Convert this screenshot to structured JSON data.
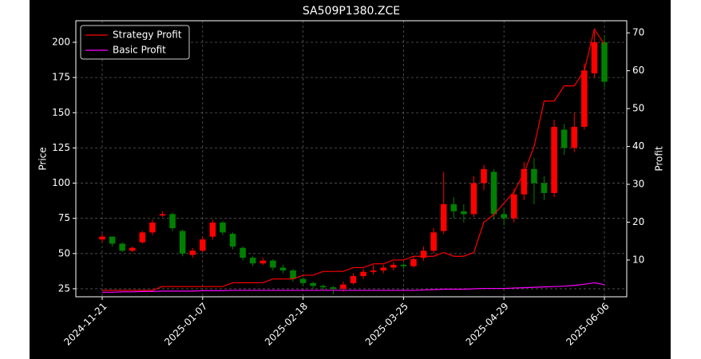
{
  "chart_data": {
    "type": "candlestick",
    "title": "SA509P1380.ZCE",
    "x_label": null,
    "y_label": "Price",
    "y2_label": "Profit",
    "categories": [
      "2024-11-21",
      null,
      null,
      null,
      null,
      null,
      null,
      null,
      null,
      null,
      "2025-01-07",
      null,
      null,
      null,
      null,
      null,
      null,
      null,
      null,
      null,
      "2025-02-18",
      null,
      null,
      null,
      null,
      null,
      null,
      null,
      null,
      null,
      "2025-03-25",
      null,
      null,
      null,
      null,
      null,
      null,
      null,
      null,
      null,
      "2025-04-29",
      null,
      null,
      null,
      null,
      null,
      null,
      null,
      null,
      null,
      "2025-06-06"
    ],
    "open": [
      60,
      62,
      57,
      52,
      58,
      65,
      77,
      78,
      66,
      49,
      52,
      62,
      72,
      64,
      54,
      47,
      43,
      45,
      40,
      38,
      32,
      29,
      27,
      26,
      25,
      29,
      34,
      37,
      38,
      40,
      42,
      41,
      47,
      52,
      66,
      85,
      80,
      78,
      100,
      108,
      78,
      75,
      92,
      110,
      100,
      93,
      138,
      125,
      140,
      178,
      200
    ],
    "high": [
      64,
      62,
      58,
      55,
      66,
      74,
      80,
      79,
      67,
      54,
      62,
      74,
      73,
      65,
      55,
      48,
      47,
      46,
      42,
      39,
      33,
      30,
      28,
      27,
      30,
      36,
      39,
      42,
      42,
      44,
      43,
      48,
      55,
      68,
      108,
      90,
      85,
      105,
      113,
      110,
      82,
      96,
      115,
      118,
      105,
      145,
      142,
      150,
      185,
      208,
      205
    ],
    "low": [
      58,
      55,
      51,
      51,
      57,
      63,
      76,
      66,
      48,
      47,
      51,
      60,
      63,
      53,
      45,
      41,
      42,
      38,
      36,
      30,
      27,
      25,
      24,
      21,
      23,
      28,
      32,
      35,
      36,
      38,
      39,
      40,
      45,
      50,
      64,
      75,
      72,
      76,
      95,
      74,
      70,
      72,
      88,
      85,
      88,
      90,
      120,
      122,
      138,
      175,
      168
    ],
    "close": [
      62,
      57,
      52,
      54,
      65,
      72,
      78,
      68,
      50,
      52,
      60,
      72,
      65,
      55,
      47,
      43,
      45,
      40,
      38,
      32,
      29,
      27,
      26,
      25,
      28,
      34,
      37,
      38,
      40,
      42,
      41,
      46,
      52,
      65,
      85,
      80,
      78,
      100,
      110,
      78,
      75,
      92,
      110,
      100,
      93,
      140,
      125,
      140,
      180,
      200,
      172
    ],
    "up_color": "#ff0000",
    "down_color": "#008000",
    "series": [
      {
        "name": "Strategy Profit",
        "color": "#ff0000",
        "axis": "y2",
        "values": [
          2,
          2,
          2,
          2,
          2,
          2,
          3,
          3,
          3,
          3,
          3,
          3,
          3,
          4,
          4,
          4,
          4,
          5,
          5,
          5,
          6,
          6,
          7,
          7,
          7,
          8,
          8,
          9,
          9,
          10,
          10,
          11,
          11,
          11,
          12,
          11,
          11,
          12,
          20,
          22,
          25,
          28,
          33,
          40,
          52,
          52,
          56,
          56,
          60,
          71,
          67
        ]
      },
      {
        "name": "Basic Profit",
        "color": "#ff00ff",
        "axis": "y2",
        "values": [
          1.5,
          1.5,
          1.6,
          1.6,
          1.7,
          1.7,
          1.8,
          1.8,
          1.8,
          1.8,
          1.9,
          1.9,
          1.9,
          2,
          2,
          2,
          2,
          2,
          2,
          2,
          2,
          2,
          2,
          2,
          2,
          2,
          2,
          2,
          2,
          2,
          2,
          2,
          2.1,
          2.2,
          2.3,
          2.3,
          2.3,
          2.4,
          2.5,
          2.5,
          2.5,
          2.6,
          2.7,
          2.8,
          2.9,
          3,
          3.1,
          3.3,
          3.6,
          4,
          3.5
        ]
      }
    ],
    "ylim": [
      19.3,
      215.3
    ],
    "yticks": [
      25,
      50,
      75,
      100,
      125,
      150,
      175,
      200
    ],
    "y2lim": [
      0.3,
      73.2
    ],
    "y2ticks": [
      10,
      20,
      30,
      40,
      50,
      60,
      70
    ],
    "grid": true,
    "legend": "upper left"
  }
}
